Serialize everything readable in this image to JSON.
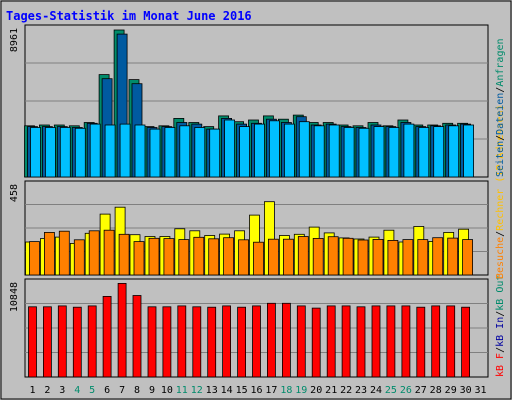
{
  "chart_data": {
    "type": "bar",
    "title": "Tages-Statistik im Monat June 2016",
    "categories": [
      "1",
      "2",
      "3",
      "4",
      "5",
      "6",
      "7",
      "8",
      "9",
      "10",
      "11",
      "12",
      "13",
      "14",
      "15",
      "16",
      "17",
      "18",
      "19",
      "20",
      "21",
      "22",
      "23",
      "24",
      "25",
      "26",
      "27",
      "28",
      "29",
      "30",
      "31"
    ],
    "weekend_days": [
      "4",
      "5",
      "11",
      "12",
      "18",
      "19",
      "25",
      "26"
    ],
    "panels": [
      {
        "name": "requests",
        "ylabel_max": "8961",
        "ylim": [
          0,
          8961
        ],
        "series": [
          {
            "name": "Anfragen",
            "color": "#008b6b",
            "values": [
              3100,
              3150,
              3150,
              3100,
              3300,
              6200,
              8900,
              5900,
              3050,
              3100,
              3550,
              3300,
              3050,
              3700,
              3350,
              3450,
              3700,
              3500,
              3750,
              3300,
              3300,
              3150,
              3100,
              3300,
              3100,
              3450,
              3150,
              3150,
              3250,
              3250,
              null
            ]
          },
          {
            "name": "Dateien",
            "color": "#005aa0",
            "values": [
              3050,
              3050,
              3050,
              3000,
              3250,
              5950,
              8650,
              5650,
              3000,
              3050,
              3300,
              3200,
              2900,
              3550,
              3200,
              3250,
              3500,
              3300,
              3650,
              3150,
              3200,
              3050,
              3000,
              3150,
              3050,
              3300,
              3050,
              3100,
              3150,
              3200,
              null
            ]
          },
          {
            "name": "Seiten",
            "color": "#00c0ff",
            "values": [
              3000,
              3000,
              3000,
              2950,
              3200,
              3150,
              3200,
              3150,
              2900,
              3000,
              3100,
              3000,
              2900,
              3450,
              3050,
              3200,
              3400,
              3200,
              3350,
              3100,
              3150,
              3000,
              2950,
              3050,
              3000,
              3200,
              3000,
              3050,
              3100,
              3150,
              null
            ]
          }
        ]
      },
      {
        "name": "visits",
        "ylabel_max": "458",
        "ylim": [
          0,
          458
        ],
        "series": [
          {
            "name": "Besuche",
            "color": "#ffff00",
            "values": [
              168,
              185,
              193,
              161,
              212,
              310,
              345,
              205,
              196,
              196,
              235,
              225,
              201,
              208,
              225,
              305,
              373,
              201,
              207,
              244,
              214,
              189,
              183,
              193,
              228,
              168,
              247,
              171,
              217,
              233,
              null
            ]
          },
          {
            "name": "Rechner",
            "color": "#ff8000",
            "values": [
              170,
              217,
              223,
              179,
              225,
              228,
              207,
              170,
              187,
              185,
              180,
              192,
              184,
              190,
              179,
              167,
              182,
              182,
              196,
              186,
              195,
              187,
              178,
              181,
              176,
              180,
              180,
              190,
              188,
              180,
              null
            ]
          }
        ]
      },
      {
        "name": "traffic",
        "ylabel_max": "10848",
        "ylim": [
          0,
          10848
        ],
        "series": [
          {
            "name": "kB F",
            "color": "#ff0000",
            "values": [
              8100,
              8100,
              8200,
              8050,
              8200,
              9300,
              10800,
              9400,
              8100,
              8100,
              8200,
              8100,
              8050,
              8200,
              8050,
              8200,
              8500,
              8500,
              8200,
              7950,
              8200,
              8200,
              8100,
              8200,
              8200,
              8200,
              8050,
              8200,
              8200,
              8050,
              null
            ]
          }
        ]
      }
    ],
    "right_legend_top": [
      {
        "text": "kB F",
        "color": "#ff0000"
      },
      {
        "text": "/",
        "color": "#000000"
      },
      {
        "text": "kB In",
        "color": "#0000a0"
      },
      {
        "text": "/",
        "color": "#000000"
      },
      {
        "text": "kB Out",
        "color": "#008b6b"
      }
    ],
    "right_legend_middle": [
      {
        "text": "Besuche",
        "color": "#ff8000"
      },
      {
        "text": "/",
        "color": "#000000"
      },
      {
        "text": "Rechner (IP-Adressen)",
        "color": "#ffbf00"
      }
    ],
    "right_legend_bottom": [
      {
        "text": "Seiten",
        "color": "#005aa0"
      },
      {
        "text": "/",
        "color": "#000000"
      },
      {
        "text": "Dateien",
        "color": "#005aa0"
      },
      {
        "text": "/",
        "color": "#000000"
      },
      {
        "text": "Anfragen",
        "color": "#008b6b"
      }
    ],
    "grid": true,
    "colors": {
      "background": "#c0c0c0",
      "title": "#0000ff",
      "weekday_label": "#000000",
      "weekend_label": "#008b6b",
      "gridline": "#808080"
    }
  }
}
